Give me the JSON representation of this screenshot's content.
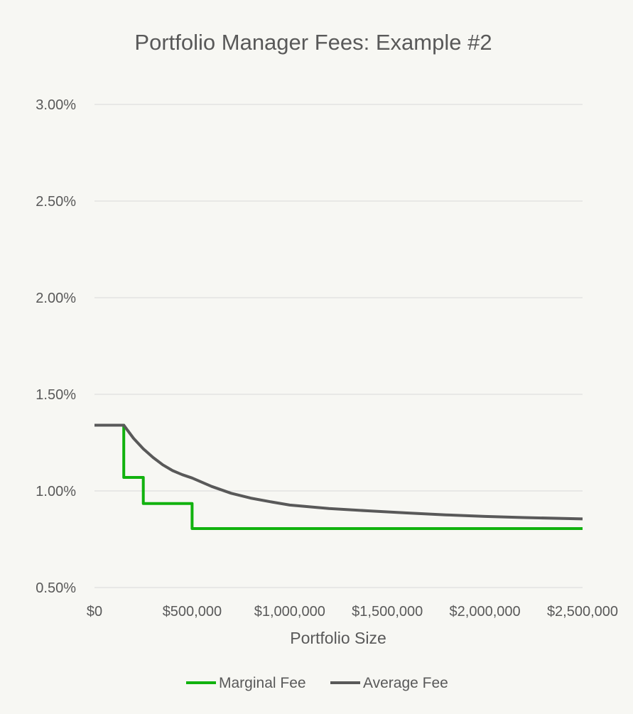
{
  "chart_data": {
    "type": "line",
    "title": "Portfolio Manager Fees: Example #2",
    "xlabel": "Portfolio Size",
    "ylabel": "",
    "xlim": [
      0,
      2500000
    ],
    "ylim": [
      0.5,
      3.0
    ],
    "x_ticks": [
      {
        "value": 0,
        "label": "$0"
      },
      {
        "value": 500000,
        "label": "$500,000"
      },
      {
        "value": 1000000,
        "label": "$1,000,000"
      },
      {
        "value": 1500000,
        "label": "$1,500,000"
      },
      {
        "value": 2000000,
        "label": "$2,000,000"
      },
      {
        "value": 2500000,
        "label": "$2,500,000"
      }
    ],
    "y_ticks": [
      {
        "value": 0.5,
        "label": "0.50%"
      },
      {
        "value": 1.0,
        "label": "1.00%"
      },
      {
        "value": 1.5,
        "label": "1.50%"
      },
      {
        "value": 2.0,
        "label": "2.00%"
      },
      {
        "value": 2.5,
        "label": "2.50%"
      },
      {
        "value": 3.0,
        "label": "3.00%"
      }
    ],
    "grid": "horizontal",
    "legend_position": "bottom",
    "series": [
      {
        "name": "Marginal Fee",
        "color": "#11b20e",
        "points": [
          [
            0,
            1.34
          ],
          [
            150000,
            1.34
          ],
          [
            150000,
            1.07
          ],
          [
            250000,
            1.07
          ],
          [
            250000,
            0.935
          ],
          [
            500000,
            0.935
          ],
          [
            500000,
            0.805
          ],
          [
            2500000,
            0.805
          ]
        ]
      },
      {
        "name": "Average Fee",
        "color": "#595959",
        "points": [
          [
            0,
            1.34
          ],
          [
            150000,
            1.34
          ],
          [
            200000,
            1.272
          ],
          [
            250000,
            1.218
          ],
          [
            300000,
            1.173
          ],
          [
            350000,
            1.135
          ],
          [
            400000,
            1.105
          ],
          [
            450000,
            1.084
          ],
          [
            500000,
            1.067
          ],
          [
            600000,
            1.023
          ],
          [
            700000,
            0.988
          ],
          [
            800000,
            0.963
          ],
          [
            900000,
            0.944
          ],
          [
            1000000,
            0.927
          ],
          [
            1200000,
            0.909
          ],
          [
            1400000,
            0.897
          ],
          [
            1600000,
            0.886
          ],
          [
            1800000,
            0.876
          ],
          [
            2000000,
            0.868
          ],
          [
            2200000,
            0.862
          ],
          [
            2500000,
            0.855
          ]
        ]
      }
    ]
  }
}
